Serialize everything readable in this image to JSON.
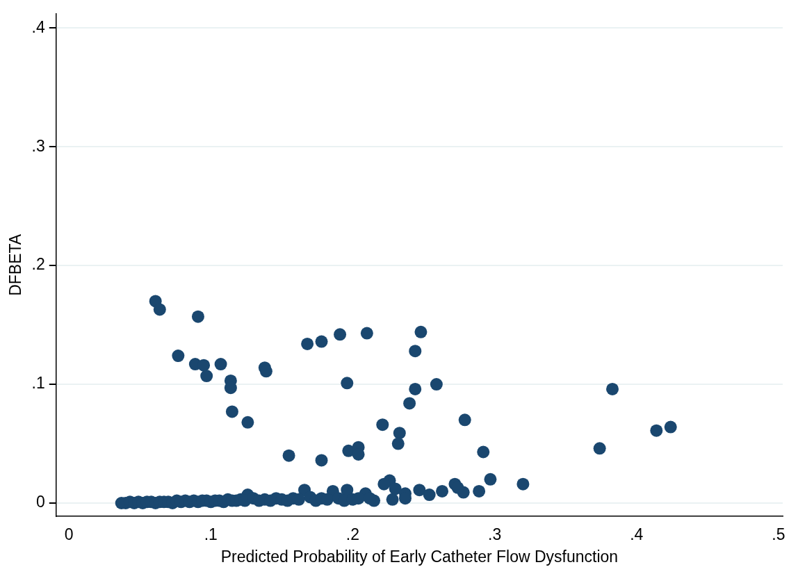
{
  "chart_data": {
    "type": "scatter",
    "xlabel": "Predicted Probability of Early Catheter Flow Dysfunction",
    "ylabel": "DFBETA",
    "xlim": [
      -0.009,
      0.503
    ],
    "ylim": [
      -0.011,
      0.412
    ],
    "xticks": [
      0,
      {
        "value": 0.1,
        "label": ".1"
      },
      {
        "value": 0.2,
        "label": ".2"
      },
      {
        "value": 0.3,
        "label": ".3"
      },
      {
        "value": 0.4,
        "label": ".4"
      },
      {
        "value": 0.5,
        "label": ".5"
      }
    ],
    "yticks": [
      0,
      {
        "value": 0.1,
        "label": ".1"
      },
      {
        "value": 0.2,
        "label": ".2"
      },
      {
        "value": 0.3,
        "label": ".3"
      },
      {
        "value": 0.4,
        "label": ".4"
      }
    ],
    "grid": "y",
    "marker": "circle",
    "legend": false,
    "series": [
      {
        "color": "#1a476f",
        "x": [
          0.061,
          0.064,
          0.091,
          0.077,
          0.089,
          0.095,
          0.097,
          0.107,
          0.114,
          0.114,
          0.115,
          0.126,
          0.138,
          0.139,
          0.155,
          0.168,
          0.178,
          0.191,
          0.21,
          0.178,
          0.196,
          0.197,
          0.204,
          0.204,
          0.221,
          0.233,
          0.232,
          0.24,
          0.244,
          0.248,
          0.244,
          0.259,
          0.279,
          0.292,
          0.374,
          0.383,
          0.414,
          0.424,
          0.226,
          0.222,
          0.228,
          0.23,
          0.237,
          0.237,
          0.247,
          0.254,
          0.263,
          0.289,
          0.297,
          0.32,
          0.272,
          0.278,
          0.274,
          0.166,
          0.196,
          0.186,
          0.209,
          0.215,
          0.126,
          0.037,
          0.04,
          0.043,
          0.046,
          0.049,
          0.052,
          0.055,
          0.058,
          0.061,
          0.064,
          0.067,
          0.07,
          0.073,
          0.076,
          0.079,
          0.082,
          0.085,
          0.088,
          0.091,
          0.094,
          0.097,
          0.1,
          0.103,
          0.106,
          0.109,
          0.112,
          0.115,
          0.118,
          0.121,
          0.124,
          0.13,
          0.134,
          0.138,
          0.142,
          0.146,
          0.15,
          0.154,
          0.158,
          0.162,
          0.17,
          0.174,
          0.178,
          0.182,
          0.19,
          0.194,
          0.2,
          0.204,
          0.212
        ],
        "values": [
          0.17,
          0.163,
          0.157,
          0.124,
          0.117,
          0.116,
          0.107,
          0.117,
          0.103,
          0.097,
          0.077,
          0.068,
          0.114,
          0.111,
          0.04,
          0.134,
          0.136,
          0.142,
          0.143,
          0.036,
          0.101,
          0.044,
          0.047,
          0.041,
          0.066,
          0.059,
          0.05,
          0.084,
          0.128,
          0.144,
          0.096,
          0.1,
          0.07,
          0.043,
          0.046,
          0.096,
          0.061,
          0.064,
          0.019,
          0.016,
          0.003,
          0.012,
          0.008,
          0.004,
          0.011,
          0.007,
          0.01,
          0.01,
          0.02,
          0.016,
          0.016,
          0.009,
          0.013,
          0.011,
          0.011,
          0.01,
          0.008,
          0.002,
          0.007,
          0.0,
          0.0,
          0.001,
          0.0,
          0.001,
          0.0,
          0.001,
          0.001,
          0.0,
          0.001,
          0.001,
          0.001,
          0.0,
          0.002,
          0.001,
          0.002,
          0.001,
          0.002,
          0.001,
          0.002,
          0.002,
          0.001,
          0.002,
          0.002,
          0.001,
          0.003,
          0.002,
          0.002,
          0.003,
          0.002,
          0.004,
          0.002,
          0.003,
          0.002,
          0.004,
          0.003,
          0.002,
          0.004,
          0.003,
          0.005,
          0.002,
          0.004,
          0.003,
          0.004,
          0.002,
          0.003,
          0.004,
          0.004
        ]
      }
    ]
  }
}
